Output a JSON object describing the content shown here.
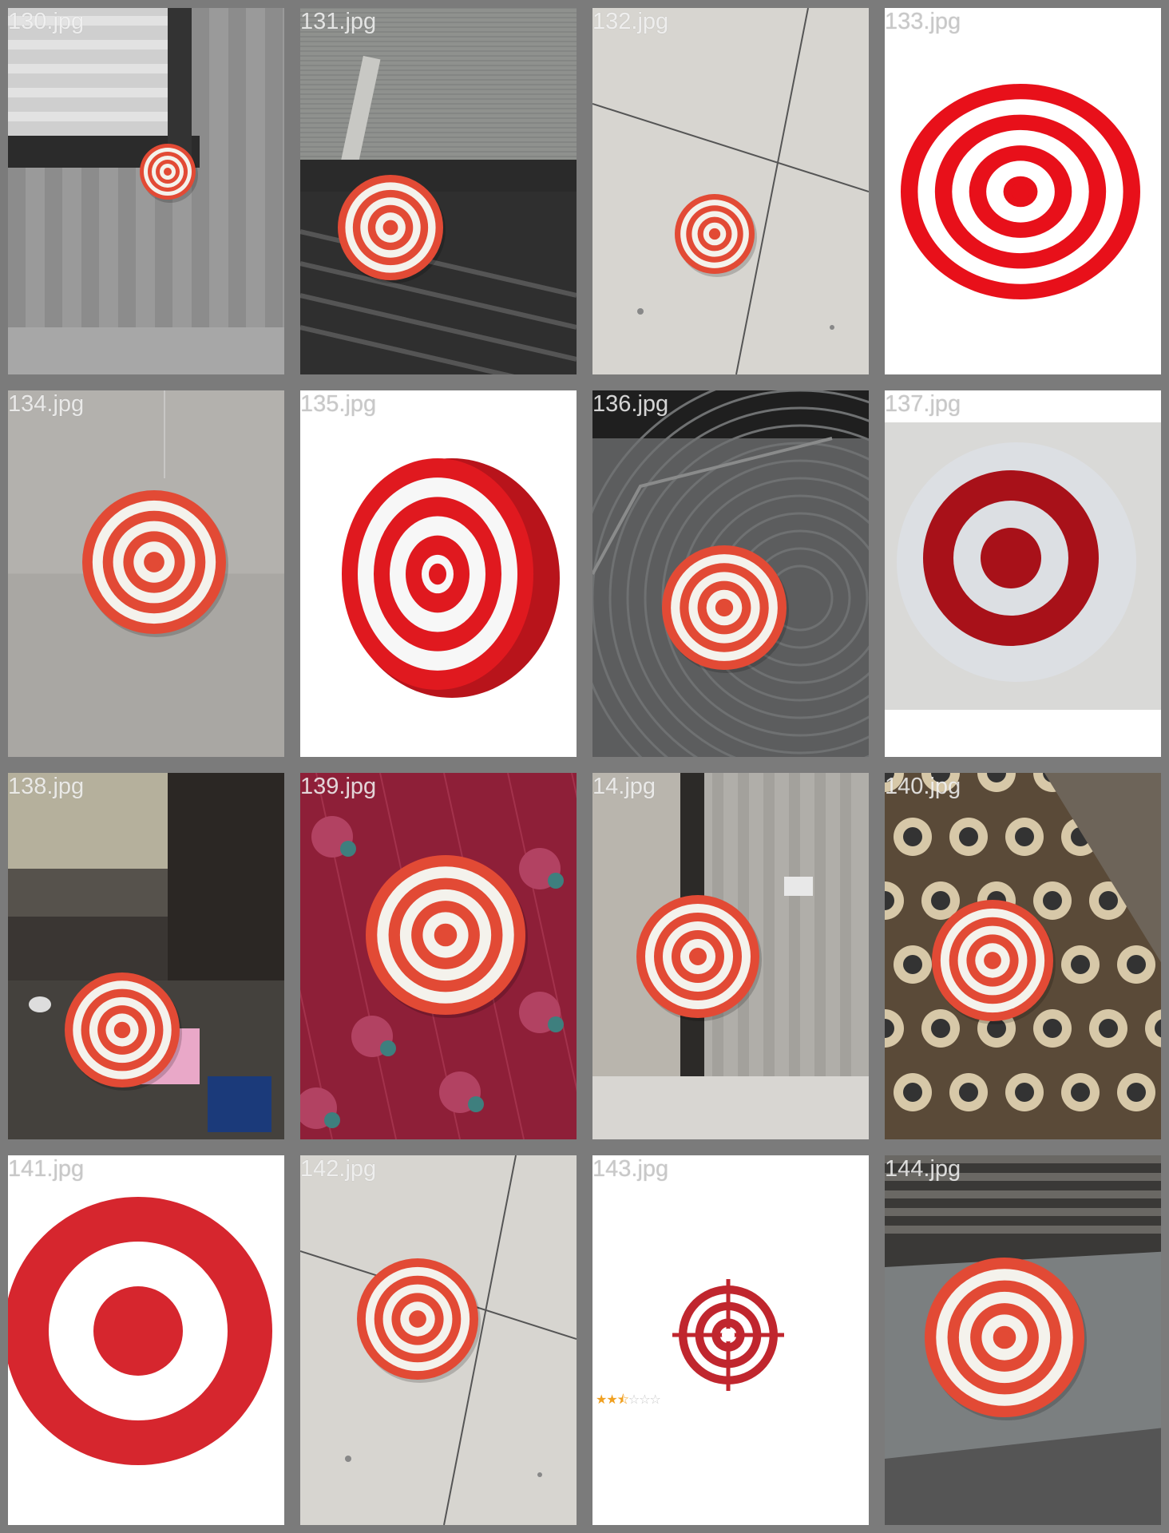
{
  "gallery": {
    "tiles": [
      {
        "filename": "130.jpg",
        "scene": "balcony-window",
        "target": "paper",
        "light": false
      },
      {
        "filename": "134.jpg",
        "scene": "grey-wall",
        "target": "paper",
        "light": false
      },
      {
        "filename": "138.jpg",
        "scene": "window-cube",
        "target": "paper",
        "light": false
      },
      {
        "filename": "141.jpg",
        "scene": "white",
        "target": "logo",
        "light": true
      },
      {
        "filename": "131.jpg",
        "scene": "mesh-window",
        "target": "paper",
        "light": false
      },
      {
        "filename": "135.jpg",
        "scene": "white",
        "target": "3d-disc",
        "light": true
      },
      {
        "filename": "139.jpg",
        "scene": "floral-fabric",
        "target": "paper",
        "light": false
      },
      {
        "filename": "142.jpg",
        "scene": "tile-floor",
        "target": "paper",
        "light": false
      },
      {
        "filename": "132.jpg",
        "scene": "tile-floor",
        "target": "paper",
        "light": false
      },
      {
        "filename": "136.jpg",
        "scene": "glass-lid",
        "target": "paper",
        "light": false
      },
      {
        "filename": "14.jpg",
        "scene": "doorway",
        "target": "paper",
        "light": false
      },
      {
        "filename": "143.jpg",
        "scene": "white",
        "target": "crosshair",
        "light": true,
        "rating": {
          "filled": "★★",
          "half": "⯪",
          "empty": "☆☆☆"
        }
      },
      {
        "filename": "133.jpg",
        "scene": "white",
        "target": "3d-rings",
        "light": true
      },
      {
        "filename": "137.jpg",
        "scene": "bottle-cap",
        "target": "cap",
        "light": true
      },
      {
        "filename": "140.jpg",
        "scene": "patterned-rug",
        "target": "paper",
        "light": false
      },
      {
        "filename": "144.jpg",
        "scene": "window-sill",
        "target": "paper",
        "light": false
      }
    ]
  },
  "colors": {
    "target_red": "#d6262e",
    "paper_red": "#e24a35",
    "frame": "#7b7b7b"
  }
}
